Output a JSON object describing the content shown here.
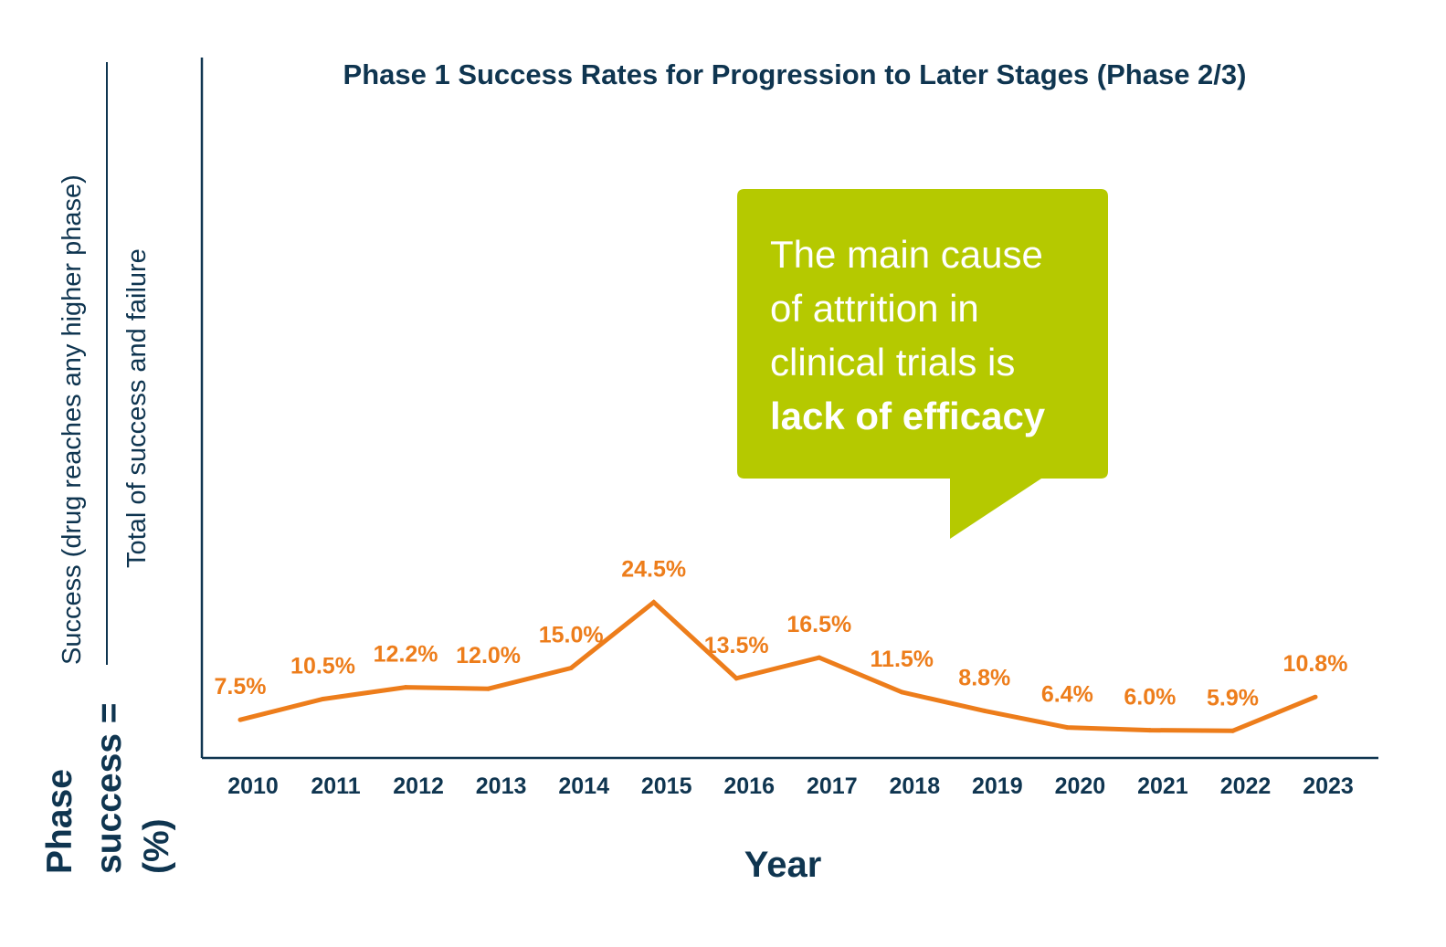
{
  "chart_data": {
    "type": "line",
    "title": "Phase 1 Success Rates for Progression to Later Stages (Phase 2/3)",
    "xlabel": "Year",
    "ylabel": {
      "prefix_lines": [
        "Phase",
        "success =",
        "(%)"
      ],
      "numerator": "Success (drug reaches any higher phase)",
      "denominator": "Total of success and failure"
    },
    "categories": [
      "2010",
      "2011",
      "2012",
      "2013",
      "2014",
      "2015",
      "2016",
      "2017",
      "2018",
      "2019",
      "2020",
      "2021",
      "2022",
      "2023"
    ],
    "series": [
      {
        "values": [
          7.5,
          10.5,
          12.2,
          12.0,
          15.0,
          24.5,
          13.5,
          16.5,
          11.5,
          8.8,
          6.4,
          6.0,
          5.9,
          10.8
        ],
        "data_labels": [
          "7.5%",
          "10.5%",
          "12.2%",
          "12.0%",
          "15.0%",
          "24.5%",
          "13.5%",
          "16.5%",
          "11.5%",
          "8.8%",
          "6.4%",
          "6.0%",
          "5.9%",
          "10.8%"
        ]
      }
    ],
    "y_ticks_shown": false,
    "grid": false,
    "annotation": {
      "text_lines": [
        "The main cause",
        "of attrition in",
        "clinical trials is"
      ],
      "emphasis": "lack of efficacy"
    },
    "colors": {
      "line": "#ED7D1B",
      "axis": "#0F3550",
      "text": "#0F3550",
      "callout": "#B5C900",
      "callout_text": "#FFFFFF"
    }
  }
}
